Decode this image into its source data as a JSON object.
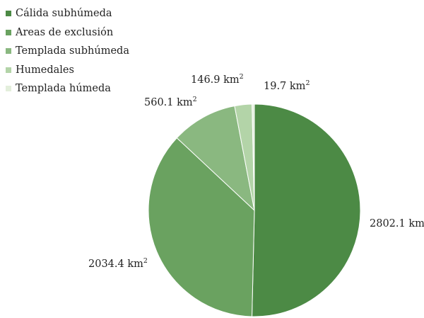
{
  "chart_data": {
    "type": "pie",
    "title": "",
    "legend_position": "top-left",
    "start_angle_deg": 0,
    "direction": "clockwise",
    "slices": [
      {
        "name": "Cálida subhúmeda",
        "value": 2802.1,
        "label": "2802.1 km",
        "unit_sup": "2",
        "color": "#4c8a45"
      },
      {
        "name": "Areas de exclusión",
        "value": 2034.4,
        "label": "2034.4 km",
        "unit_sup": "2",
        "color": "#6aa260"
      },
      {
        "name": "Templada subhúmeda",
        "value": 560.1,
        "label": "560.1 km",
        "unit_sup": "2",
        "color": "#8ab880"
      },
      {
        "name": "Humedales",
        "value": 146.9,
        "label": "146.9 km",
        "unit_sup": "2",
        "color": "#b3d4a8"
      },
      {
        "name": "Templada húmeda",
        "value": 19.7,
        "label": "19.7 km",
        "unit_sup": "2",
        "color": "#e3efdc"
      }
    ]
  }
}
